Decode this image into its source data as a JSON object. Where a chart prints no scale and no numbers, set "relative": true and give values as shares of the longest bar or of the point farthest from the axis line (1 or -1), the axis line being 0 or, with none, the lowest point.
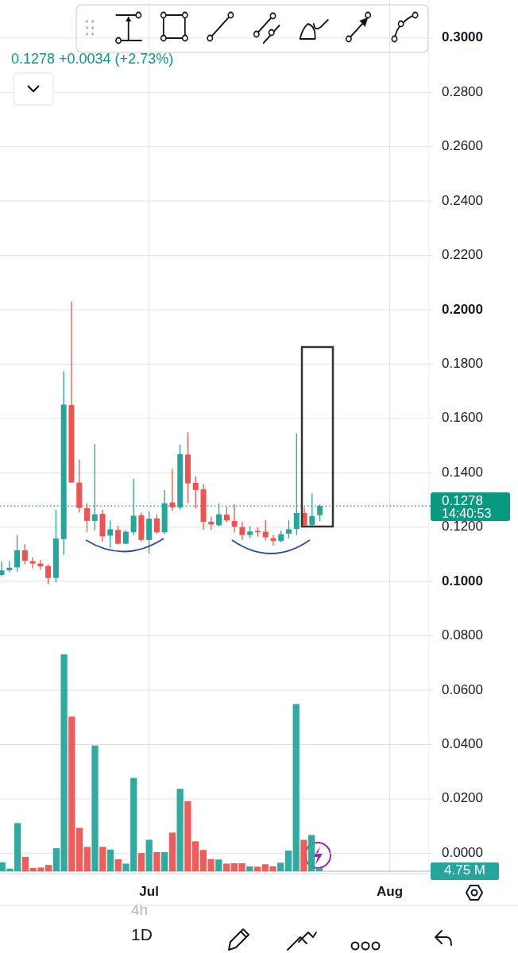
{
  "chart_data": [
    {
      "type": "candlestick",
      "subtitle": "0.1278 +0.0034 (+2.73%)",
      "x": [
        "--06-12",
        "--06-13",
        "--06-14",
        "--06-15",
        "--06-16",
        "--06-17",
        "--06-18",
        "--06-19",
        "--06-20",
        "--06-21",
        "--06-22",
        "--06-23",
        "--06-24",
        "--06-25",
        "--06-26",
        "--06-27",
        "--06-28",
        "--06-29",
        "--06-30",
        "--07-01",
        "--07-02",
        "--07-03",
        "--07-04",
        "--07-05",
        "--07-06",
        "--07-07",
        "--07-08",
        "--07-09",
        "--07-10",
        "--07-11",
        "--07-12",
        "--07-13",
        "--07-14",
        "--07-15",
        "--07-16",
        "--07-17",
        "--07-18",
        "--07-19",
        "--07-20",
        "--07-21",
        "--07-22",
        "--07-23"
      ],
      "ohlc": [
        [
          0.1024,
          0.1073,
          0.1019,
          0.1041
        ],
        [
          0.1041,
          0.1075,
          0.1034,
          0.1051
        ],
        [
          0.1052,
          0.1171,
          0.1036,
          0.1115
        ],
        [
          0.1115,
          0.1137,
          0.1063,
          0.1076
        ],
        [
          0.1075,
          0.109,
          0.1049,
          0.1066
        ],
        [
          0.1066,
          0.108,
          0.1044,
          0.1056
        ],
        [
          0.1057,
          0.1063,
          0.099,
          0.1013
        ],
        [
          0.1013,
          0.1264,
          0.0997,
          0.1158
        ],
        [
          0.1156,
          0.1774,
          0.1098,
          0.1651
        ],
        [
          0.1649,
          0.203,
          0.1364,
          0.1364
        ],
        [
          0.1364,
          0.1449,
          0.1254,
          0.1271
        ],
        [
          0.127,
          0.1288,
          0.1181,
          0.1223
        ],
        [
          0.1223,
          0.1506,
          0.1188,
          0.1247
        ],
        [
          0.1249,
          0.1264,
          0.1146,
          0.1166
        ],
        [
          0.1169,
          0.1225,
          0.1124,
          0.1192
        ],
        [
          0.119,
          0.1205,
          0.1137,
          0.1139
        ],
        [
          0.1139,
          0.119,
          0.1137,
          0.1183
        ],
        [
          0.1181,
          0.1378,
          0.1171,
          0.1242
        ],
        [
          0.1244,
          0.1254,
          0.1146,
          0.1153
        ],
        [
          0.1153,
          0.1257,
          0.1103,
          0.1231
        ],
        [
          0.1232,
          0.1247,
          0.1176,
          0.1181
        ],
        [
          0.1181,
          0.1337,
          0.1176,
          0.1288
        ],
        [
          0.1291,
          0.1415,
          0.1261,
          0.1273
        ],
        [
          0.1273,
          0.1503,
          0.1264,
          0.1469
        ],
        [
          0.1467,
          0.1549,
          0.1288,
          0.1361
        ],
        [
          0.1363,
          0.1386,
          0.1268,
          0.1337
        ],
        [
          0.1339,
          0.1358,
          0.119,
          0.122
        ],
        [
          0.122,
          0.1239,
          0.119,
          0.121
        ],
        [
          0.1207,
          0.1288,
          0.1202,
          0.1247
        ],
        [
          0.1246,
          0.1275,
          0.1218,
          0.1225
        ],
        [
          0.1223,
          0.1285,
          0.1181,
          0.1202
        ],
        [
          0.12,
          0.122,
          0.1153,
          0.1171
        ],
        [
          0.1171,
          0.1203,
          0.1159,
          0.1184
        ],
        [
          0.1186,
          0.12,
          0.1166,
          0.1181
        ],
        [
          0.1183,
          0.1226,
          0.1151,
          0.1163
        ],
        [
          0.1159,
          0.1171,
          0.1132,
          0.1149
        ],
        [
          0.1149,
          0.1187,
          0.1144,
          0.1174
        ],
        [
          0.1176,
          0.1225,
          0.1159,
          0.1192
        ],
        [
          0.1193,
          0.1545,
          0.1171,
          0.1252
        ],
        [
          0.1252,
          0.1273,
          0.12,
          0.1207
        ],
        [
          0.1208,
          0.1324,
          0.1205,
          0.1241
        ],
        [
          0.1244,
          0.1283,
          0.1222,
          0.1278
        ]
      ],
      "colors": [
        "#26a69a",
        "#26a69a",
        "#26a69a",
        "#ef5350",
        "#ef5350",
        "#ef5350",
        "#ef5350",
        "#26a69a",
        "#26a69a",
        "#ef5350",
        "#ef5350",
        "#ef5350",
        "#26a69a",
        "#ef5350",
        "#26a69a",
        "#ef5350",
        "#26a69a",
        "#26a69a",
        "#ef5350",
        "#26a69a",
        "#ef5350",
        "#26a69a",
        "#ef5350",
        "#26a69a",
        "#ef5350",
        "#ef5350",
        "#ef5350",
        "#ef5350",
        "#26a69a",
        "#ef5350",
        "#ef5350",
        "#ef5350",
        "#26a69a",
        "#ef5350",
        "#ef5350",
        "#ef5350",
        "#26a69a",
        "#26a69a",
        "#26a69a",
        "#ef5350",
        "#26a69a",
        "#26a69a"
      ],
      "xlim": [
        "--06-12",
        "--08-06"
      ],
      "xticks": [
        {
          "value": "--07-01",
          "label": "Jul"
        },
        {
          "value": "--08-01",
          "label": "Aug"
        }
      ],
      "ylim": [
        -0.0075,
        0.314
      ],
      "yticks": [
        {
          "value": 0,
          "label": "0.0000"
        },
        {
          "value": 0.02,
          "label": "0.0200"
        },
        {
          "value": 0.04,
          "label": "0.0400"
        },
        {
          "value": 0.06,
          "label": "0.0600"
        },
        {
          "value": 0.08,
          "label": "0.0800"
        },
        {
          "value": 0.1,
          "label": "0.1000"
        },
        {
          "value": 0.12,
          "label": "0.1200"
        },
        {
          "value": 0.14,
          "label": "0.1400"
        },
        {
          "value": 0.16,
          "label": "0.1600"
        },
        {
          "value": 0.18,
          "label": "0.1800"
        },
        {
          "value": 0.2,
          "label": "0.2000"
        },
        {
          "value": 0.22,
          "label": "0.2200"
        },
        {
          "value": 0.24,
          "label": "0.2400"
        },
        {
          "value": 0.26,
          "label": "0.2600"
        },
        {
          "value": 0.28,
          "label": "0.2800"
        },
        {
          "value": 0.3,
          "label": "0.3000"
        }
      ],
      "grid": true,
      "ref_lines": [
        {
          "axis": "y",
          "value": 0.1278,
          "label": "0.1278",
          "color": "#089981",
          "line_style": "dotted"
        }
      ],
      "annotations": [
        "14:40:53",
        "4h",
        "1D"
      ]
    },
    {
      "type": "bar",
      "relative": true,
      "categories": [
        null,
        null,
        null,
        null,
        null,
        null,
        null,
        null,
        null,
        null,
        null,
        null,
        null,
        null,
        null,
        null,
        null,
        null,
        null,
        null,
        null,
        null,
        null,
        null,
        null,
        null,
        null,
        null,
        null,
        null,
        null,
        null,
        null,
        null,
        null,
        null,
        null,
        null,
        null,
        null,
        null,
        null
      ],
      "values": [
        0.041,
        0.012,
        0.222,
        0.066,
        0.015,
        0.017,
        0.029,
        0.106,
        1,
        0.713,
        0.2,
        0.112,
        0.58,
        0.112,
        0.1,
        0.055,
        0.035,
        0.43,
        0.084,
        0.145,
        0.088,
        0.088,
        0.178,
        0.38,
        0.323,
        0.138,
        0.098,
        0.056,
        0.054,
        0.035,
        0.037,
        0.037,
        0.022,
        0.021,
        0.032,
        0.023,
        0.039,
        0.095,
        0.771,
        0.145,
        0.167,
        0.015
      ],
      "colors": [
        "#26a69a",
        "#26a69a",
        "#26a69a",
        "#ef5350",
        "#ef5350",
        "#ef5350",
        "#ef5350",
        "#26a69a",
        "#26a69a",
        "#ef5350",
        "#ef5350",
        "#ef5350",
        "#26a69a",
        "#ef5350",
        "#26a69a",
        "#ef5350",
        "#26a69a",
        "#26a69a",
        "#ef5350",
        "#26a69a",
        "#ef5350",
        "#26a69a",
        "#ef5350",
        "#26a69a",
        "#ef5350",
        "#ef5350",
        "#ef5350",
        "#ef5350",
        "#26a69a",
        "#ef5350",
        "#ef5350",
        "#ef5350",
        "#26a69a",
        "#ef5350",
        "#ef5350",
        "#ef5350",
        "#26a69a",
        "#26a69a",
        "#26a69a",
        "#ef5350",
        "#26a69a",
        "#26a69a"
      ],
      "annotations": [
        "4.75 M"
      ]
    }
  ]
}
